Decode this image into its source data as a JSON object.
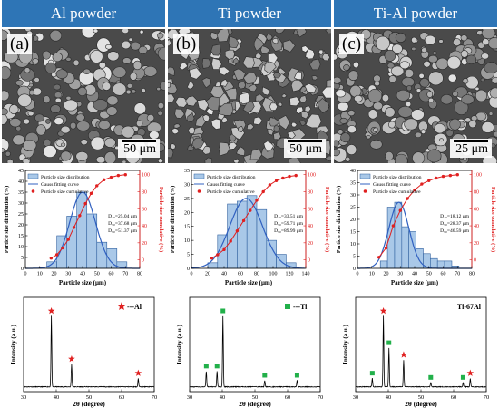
{
  "columns": [
    {
      "title": "Al powder",
      "panel_label": "(a)",
      "scale_bar": "50 μm",
      "particle_size": {
        "legend": [
          "Particle size distribution",
          "Gauss fitting curve",
          "Particle size cumulative"
        ],
        "stats": [
          "D₁₀=25.04 μm",
          "D₅₀=37.68 μm",
          "D₉₀=51.37 μm"
        ],
        "xlabel": "Particle size (μm)",
        "ylabel_left": "Particle size distribution (%)",
        "ylabel_right": "Particle size cumulative (%)",
        "xticks": [
          0,
          10,
          20,
          30,
          40,
          50,
          60,
          70,
          80
        ],
        "yticks_left": [
          0,
          5,
          10,
          15,
          20,
          25,
          30,
          35,
          40,
          45
        ],
        "yticks_right": [
          0,
          20,
          40,
          60,
          80,
          100
        ],
        "xlim": [
          0,
          80
        ],
        "ylim_left": [
          0,
          45
        ],
        "ylim_right": [
          -10,
          105
        ],
        "bar_edges": [
          15,
          22,
          29,
          36,
          43,
          50,
          57,
          64,
          71
        ],
        "bar_values": [
          3,
          15,
          24,
          35,
          25,
          12,
          9,
          3
        ],
        "gauss": {
          "mean": 40,
          "sigma": 9,
          "peak": 35
        },
        "cumulative_x": [
          18,
          22,
          26,
          30,
          34,
          38,
          42,
          46,
          50,
          55,
          60,
          65,
          70
        ],
        "cumulative_y": [
          2,
          6,
          14,
          24,
          38,
          52,
          66,
          78,
          87,
          94,
          97,
          99,
          100
        ]
      },
      "xrd": {
        "legend_marker": "red-star-icon",
        "legend_label": "---Al",
        "xlabel": "2θ (degree)",
        "ylabel": "Intensity (a.u.)",
        "xticks": [
          30,
          40,
          50,
          60,
          70
        ],
        "xlim": [
          30,
          70
        ],
        "peaks": [
          {
            "two_theta": 38.5,
            "intensity": 100,
            "marker": "star"
          },
          {
            "two_theta": 44.7,
            "intensity": 32,
            "marker": "star"
          },
          {
            "two_theta": 65.1,
            "intensity": 12,
            "marker": "star"
          }
        ]
      }
    },
    {
      "title": "Ti powder",
      "panel_label": "(b)",
      "scale_bar": "50 μm",
      "particle_size": {
        "legend": [
          "Particle size distribution",
          "Gauss fitting curve",
          "Particle size cumulative"
        ],
        "stats": [
          "D₁₀=33.51 μm",
          "D₅₀=59.71 μm",
          "D₉₀=89.99 μm"
        ],
        "xlabel": "Particle size (μm)",
        "ylabel_left": "Particle size distribution (%)",
        "ylabel_right": "Particle size cumulative (%)",
        "xticks": [
          0,
          20,
          40,
          60,
          80,
          100,
          120,
          140
        ],
        "yticks_left": [
          0,
          5,
          10,
          15,
          20,
          25,
          30,
          35
        ],
        "yticks_right": [
          0,
          20,
          40,
          60,
          80,
          100
        ],
        "xlim": [
          0,
          140
        ],
        "ylim_left": [
          0,
          35
        ],
        "ylim_right": [
          -10,
          105
        ],
        "bar_edges": [
          20,
          32,
          44,
          56,
          68,
          80,
          92,
          104,
          116,
          128
        ],
        "bar_values": [
          2,
          12,
          23,
          24,
          26,
          21,
          10,
          5,
          2
        ],
        "gauss": {
          "mean": 67,
          "sigma": 20,
          "peak": 25
        },
        "cumulative_x": [
          25,
          32,
          40,
          48,
          56,
          64,
          72,
          80,
          88,
          96,
          104,
          112,
          120,
          128
        ],
        "cumulative_y": [
          2,
          6,
          12,
          22,
          34,
          46,
          58,
          70,
          80,
          88,
          93,
          96,
          98,
          99
        ]
      },
      "xrd": {
        "legend_marker": "green-square-icon",
        "legend_label": "---Ti",
        "xlabel": "2θ (degree)",
        "ylabel": "Intensity (a.u.)",
        "xticks": [
          30,
          40,
          50,
          60,
          70
        ],
        "xlim": [
          30,
          70
        ],
        "peaks": [
          {
            "two_theta": 35.1,
            "intensity": 22,
            "marker": "square"
          },
          {
            "two_theta": 38.4,
            "intensity": 22,
            "marker": "square"
          },
          {
            "two_theta": 40.2,
            "intensity": 100,
            "marker": "square"
          },
          {
            "two_theta": 53.0,
            "intensity": 9,
            "marker": "square"
          },
          {
            "two_theta": 62.9,
            "intensity": 9,
            "marker": "square"
          }
        ]
      }
    },
    {
      "title": "Ti-Al powder",
      "panel_label": "(c)",
      "scale_bar": "25 μm",
      "particle_size": {
        "legend": [
          "Particle size distribution",
          "Gauss fitting curve",
          "Particle size cumulative"
        ],
        "stats": [
          "D₁₀=18.12 μm",
          "D₅₀=28.37 μm",
          "D₉₀=46.59 μm"
        ],
        "xlabel": "Particle size (μm)",
        "ylabel_left": "Particle size distribution (%)",
        "ylabel_right": "Particle size cumulative (%)",
        "xticks": [
          0,
          10,
          20,
          30,
          40,
          50,
          60,
          70,
          80
        ],
        "yticks_left": [
          0,
          5,
          10,
          15,
          20,
          25,
          30,
          35,
          40
        ],
        "yticks_right": [
          0,
          20,
          40,
          60,
          80,
          100
        ],
        "xlim": [
          0,
          80
        ],
        "ylim_left": [
          0,
          40
        ],
        "ylim_right": [
          -10,
          105
        ],
        "bar_edges": [
          16,
          21,
          26,
          31,
          36,
          41,
          46,
          51,
          56,
          61,
          66,
          71
        ],
        "bar_values": [
          3,
          25,
          27,
          17,
          15,
          8,
          6,
          4,
          3,
          3,
          1
        ],
        "gauss": {
          "mean": 29,
          "sigma": 7,
          "peak": 27
        },
        "cumulative_x": [
          15,
          20,
          25,
          30,
          35,
          40,
          45,
          50,
          55,
          60,
          65,
          70
        ],
        "cumulative_y": [
          3,
          14,
          40,
          58,
          72,
          82,
          89,
          93,
          96,
          98,
          99,
          100
        ]
      },
      "xrd": {
        "legend_marker": "",
        "legend_label": "Ti-67Al",
        "xlabel": "2θ (degree)",
        "ylabel": "Intensity (a.u.)",
        "xticks": [
          30,
          40,
          50,
          60,
          70
        ],
        "xlim": [
          30,
          70
        ],
        "peaks": [
          {
            "two_theta": 35.1,
            "intensity": 12,
            "marker": "square"
          },
          {
            "two_theta": 38.5,
            "intensity": 100,
            "marker": "star"
          },
          {
            "two_theta": 40.2,
            "intensity": 55,
            "marker": "square"
          },
          {
            "two_theta": 44.7,
            "intensity": 38,
            "marker": "star"
          },
          {
            "two_theta": 53.0,
            "intensity": 6,
            "marker": "square"
          },
          {
            "two_theta": 62.9,
            "intensity": 6,
            "marker": "square"
          },
          {
            "two_theta": 65.1,
            "intensity": 12,
            "marker": "star"
          }
        ]
      }
    }
  ],
  "colors": {
    "header_bg": "#2e75b6",
    "header_text": "#ffffff",
    "bar_fill": "#a9c8e8",
    "bar_edge": "#2f5f9e",
    "gauss_line": "#3060c0",
    "cumulative": "#e02020",
    "al_marker": "#e02020",
    "ti_marker": "#22b04a",
    "xrd_line": "#000000"
  }
}
